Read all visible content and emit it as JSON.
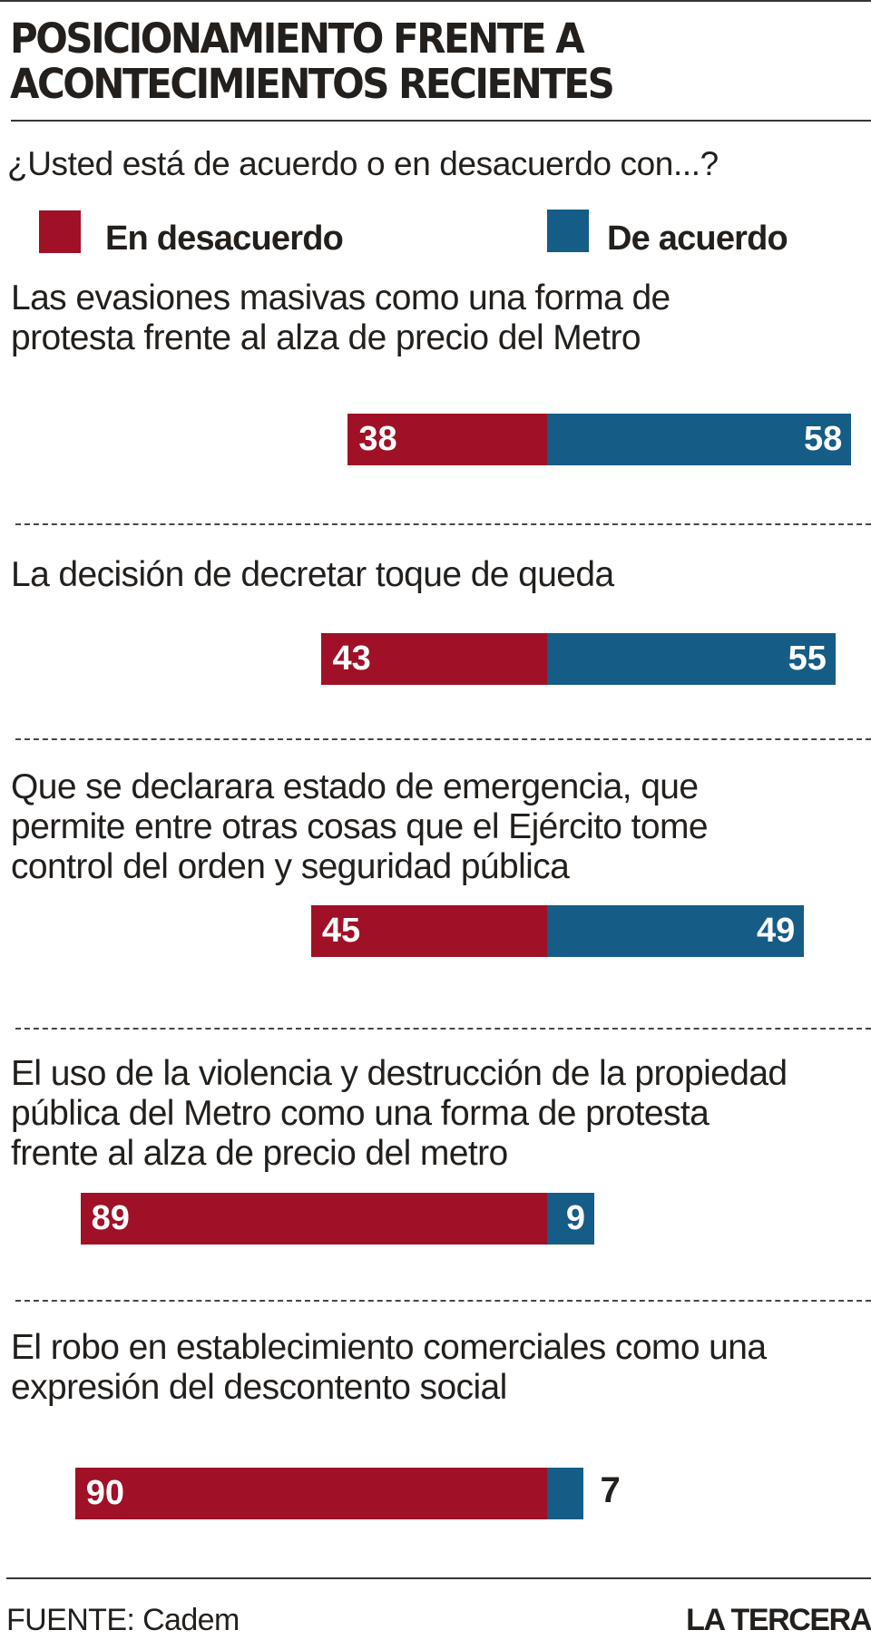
{
  "title": {
    "line1": "POSICIONAMIENTO FRENTE A",
    "line2": "ACONTECIMIENTOS RECIENTES"
  },
  "question": "¿Usted está de acuerdo o en desacuerdo con...?",
  "legend": [
    {
      "label": "En desacuerdo",
      "color": "#a01026"
    },
    {
      "label": "De acuerdo",
      "color": "#155c87"
    }
  ],
  "colors": {
    "disagree": "#a01026",
    "agree": "#155c87",
    "text": "#231f1c"
  },
  "chart_data": {
    "type": "bar",
    "orientation": "horizontal-diverging",
    "title": "POSICIONAMIENTO FRENTE A ACONTECIMIENTOS RECIENTES",
    "subtitle": "¿Usted está de acuerdo o en desacuerdo con...?",
    "xlabel": "",
    "ylabel": "",
    "unit": "%",
    "legend_position": "top",
    "grid": false,
    "categories": [
      "Las evasiones masivas como una forma de protesta frente al alza de precio del Metro",
      "La decisión de decretar toque de queda",
      "Que se declarara estado de emergencia, que permite entre otras cosas que el Ejército tome control del orden y seguridad pública",
      "El uso de la violencia y destrucción de la propiedad pública del Metro como una forma de protesta frente al alza de precio del metro",
      "El robo en establecimiento comerciales como una expresión del descontento social"
    ],
    "series": [
      {
        "name": "En desacuerdo",
        "color": "#a01026",
        "values": [
          38,
          43,
          45,
          89,
          90
        ]
      },
      {
        "name": "De acuerdo",
        "color": "#155c87",
        "values": [
          58,
          55,
          49,
          9,
          7
        ]
      }
    ]
  },
  "items": [
    {
      "text": "Las evasiones masivas como una forma de\nprotesta frente al alza de precio del Metro",
      "disagree": 38,
      "agree": 58,
      "disagree_label": "38",
      "agree_label": "58"
    },
    {
      "text": "La decisión de decretar toque de queda",
      "disagree": 43,
      "agree": 55,
      "disagree_label": "43",
      "agree_label": "55"
    },
    {
      "text": "Que se declarara estado de emergencia, que\npermite entre otras cosas que el Ejército tome\ncontrol del orden y seguridad pública",
      "disagree": 45,
      "agree": 49,
      "disagree_label": "45",
      "agree_label": "49"
    },
    {
      "text": "El uso de la violencia y destrucción de la propiedad\npública del Metro como una forma de protesta\nfrente al alza de precio del metro",
      "disagree": 89,
      "agree": 9,
      "disagree_label": "89",
      "agree_label": "9"
    },
    {
      "text": "El robo en establecimiento comerciales como una\nexpresión del descontento social",
      "disagree": 90,
      "agree": 7,
      "disagree_label": "90",
      "agree_label": "7"
    }
  ],
  "footer": {
    "source": "FUENTE: Cadem",
    "brand": "LA TERCERA"
  }
}
